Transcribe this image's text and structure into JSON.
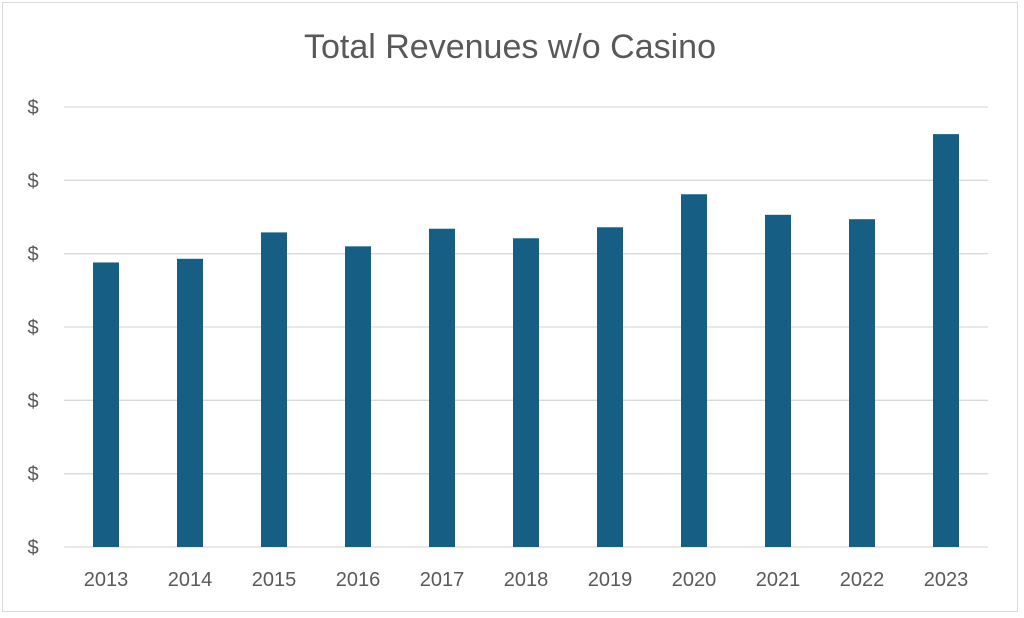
{
  "chart_data": {
    "type": "bar",
    "title": "Total Revenues w/o Casino",
    "xlabel": "",
    "ylabel": "",
    "categories": [
      "2013",
      "2014",
      "2015",
      "2016",
      "2017",
      "2018",
      "2019",
      "2020",
      "2021",
      "2022",
      "2023"
    ],
    "values": [
      3.88,
      3.93,
      4.29,
      4.1,
      4.34,
      4.21,
      4.36,
      4.81,
      4.53,
      4.47,
      5.63
    ],
    "ylim": [
      0,
      6
    ],
    "y_tick_values": [
      0,
      1,
      2,
      3,
      4,
      5,
      6
    ],
    "y_tick_labels": [
      "$",
      "$",
      "$",
      "$",
      "$",
      "$",
      "$"
    ],
    "grid": true,
    "bar_color": "#175e85",
    "grid_color": "#d9d9d9",
    "legend": "none"
  }
}
